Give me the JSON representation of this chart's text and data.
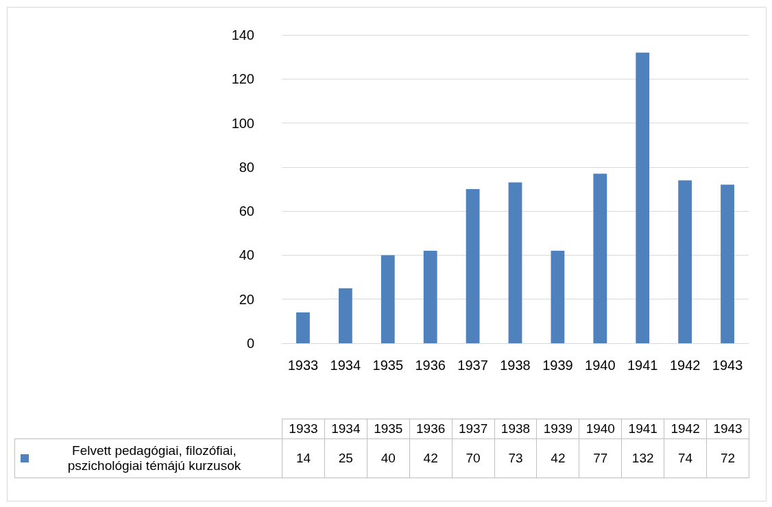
{
  "chart_data": {
    "type": "bar",
    "categories": [
      "1933",
      "1934",
      "1935",
      "1936",
      "1937",
      "1938",
      "1939",
      "1940",
      "1941",
      "1942",
      "1943"
    ],
    "series": [
      {
        "name": "Felvett pedagógiai, filozófiai, pszichológiai témájú kurzusok",
        "color": "#4f81bd",
        "values": [
          14,
          25,
          40,
          42,
          70,
          73,
          42,
          77,
          132,
          74,
          72
        ]
      }
    ],
    "ylim": [
      0,
      140
    ],
    "yticks": [
      0,
      20,
      40,
      60,
      80,
      100,
      120,
      140
    ],
    "grid": "y",
    "legend": "bottom",
    "data_labels": true
  }
}
